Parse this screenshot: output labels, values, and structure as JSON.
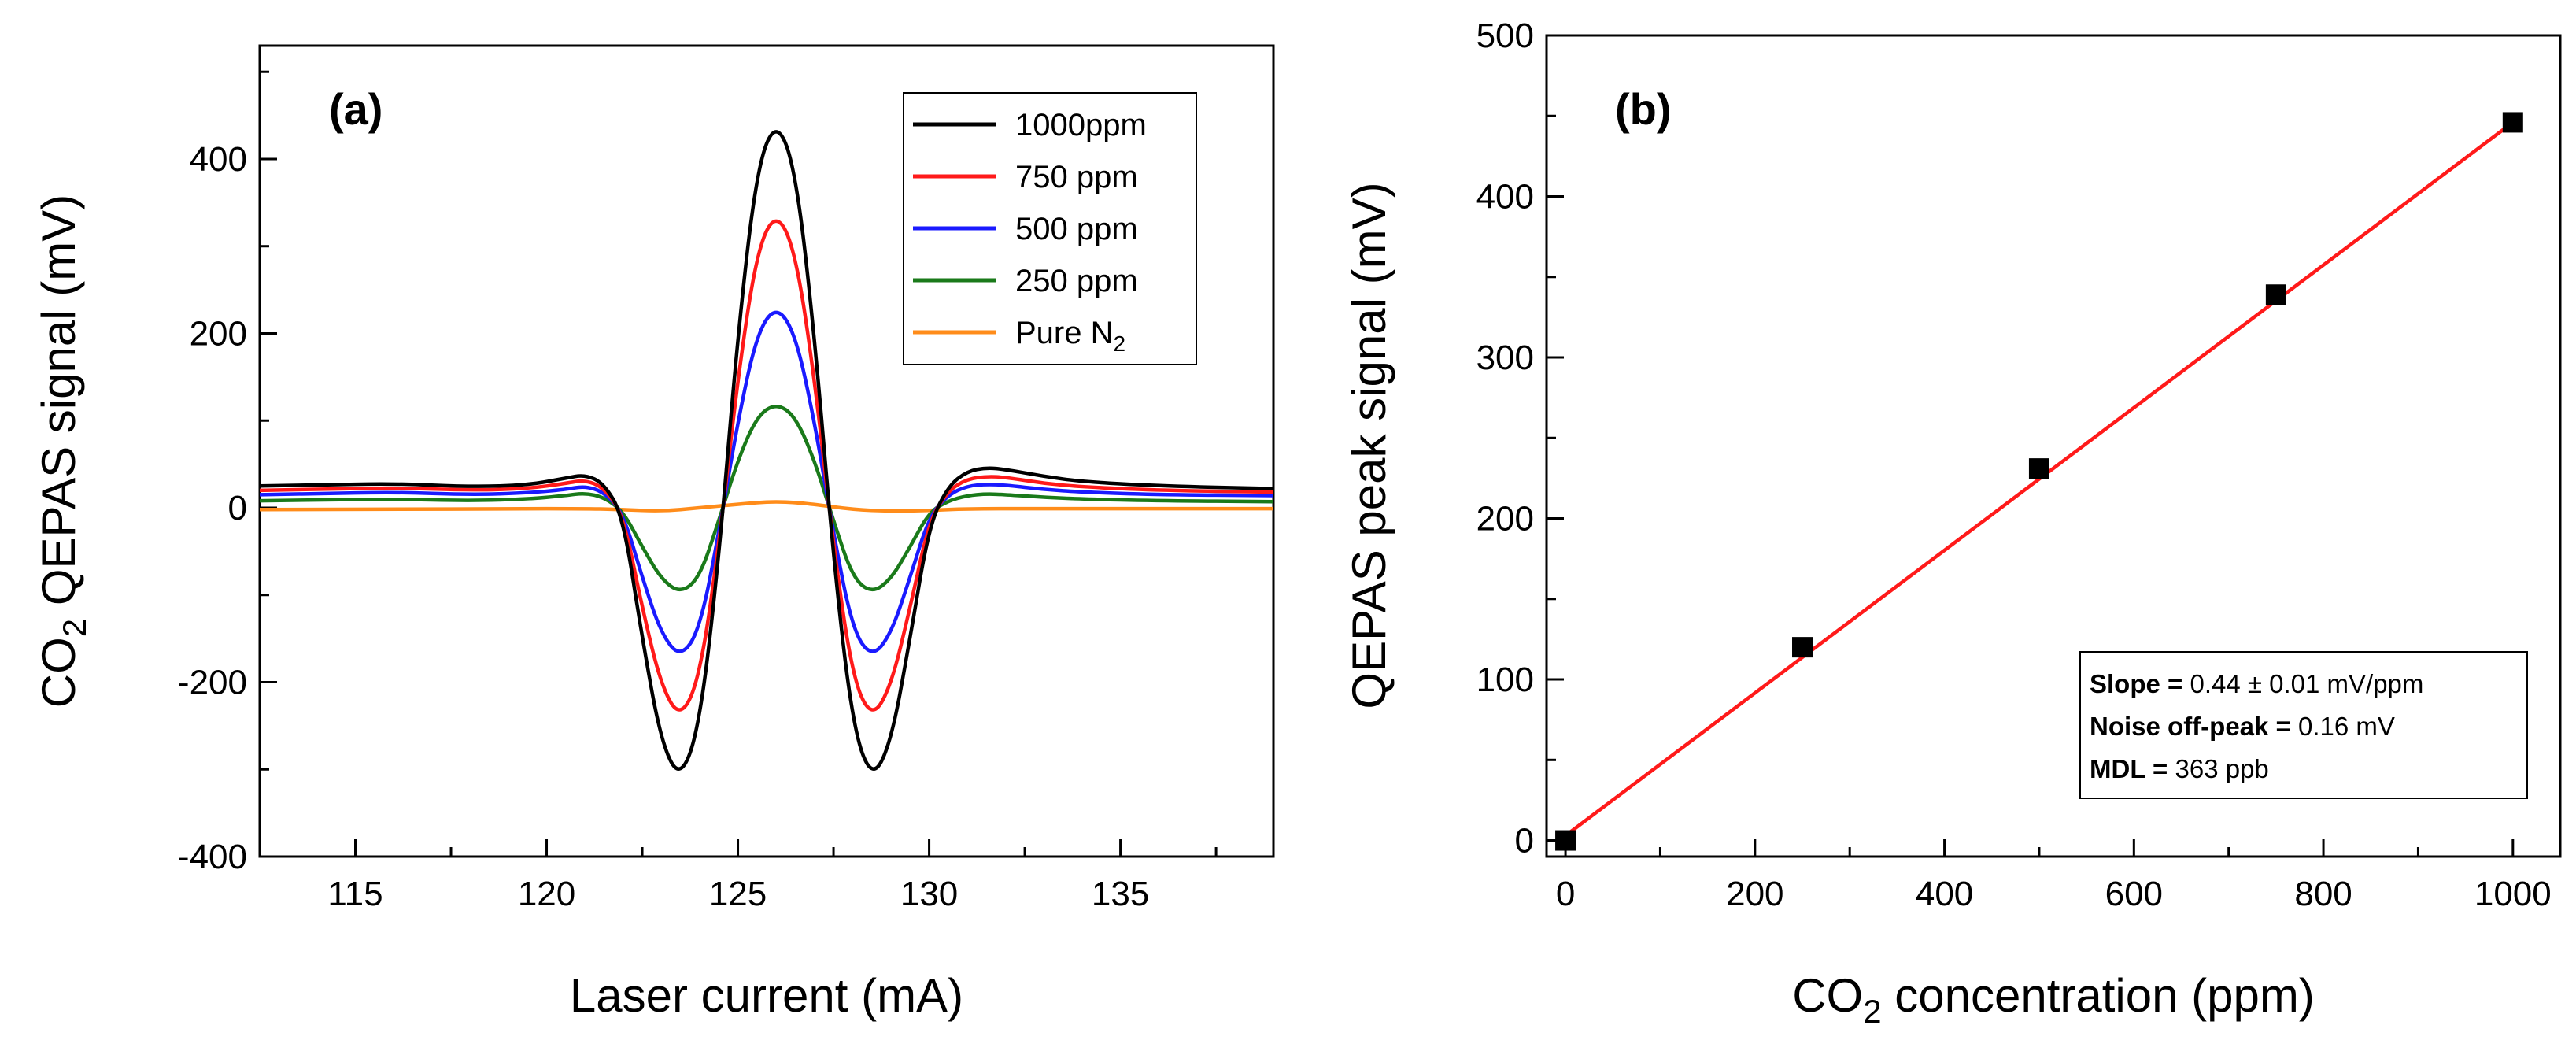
{
  "chart_data": [
    {
      "type": "line",
      "panel_label": "(a)",
      "ylabel": "CO",
      "ylabel_sub": "2",
      "ylabel_rest": " QEPAS signal (mV)",
      "xlabel": "Laser current (mA)",
      "xlim": [
        112.5,
        139
      ],
      "ylim": [
        -400,
        530
      ],
      "xticks": [
        115,
        120,
        125,
        130,
        135
      ],
      "yticks": [
        -400,
        -200,
        0,
        200,
        400
      ],
      "legend_position": "top-right",
      "series": [
        {
          "name": "1000ppm",
          "name_sub": "",
          "color": "#000000",
          "x": [
            112.5,
            114,
            116,
            118,
            119.5,
            120.5,
            121,
            121.5,
            122,
            122.5,
            123,
            123.5,
            124,
            124.5,
            125,
            125.5,
            126,
            126.5,
            127,
            127.5,
            128,
            128.5,
            129,
            129.5,
            130,
            130.5,
            131,
            131.5,
            132,
            133,
            134,
            136,
            139
          ],
          "y": [
            25,
            26,
            28,
            24,
            26,
            34,
            38,
            28,
            -10,
            -150,
            -270,
            -312,
            -250,
            -60,
            200,
            390,
            445,
            390,
            200,
            -60,
            -250,
            -312,
            -270,
            -150,
            -20,
            25,
            42,
            46,
            44,
            36,
            30,
            25,
            22
          ]
        },
        {
          "name": "750 ppm",
          "name_sub": "",
          "color": "#ff1a1a",
          "x": [
            112.5,
            114,
            116,
            118,
            119.5,
            120.5,
            121,
            121.5,
            122,
            122.5,
            123,
            123.5,
            124,
            124.5,
            125,
            125.5,
            126,
            126.5,
            127,
            127.5,
            128,
            128.5,
            129,
            129.5,
            130,
            130.5,
            131,
            131.5,
            132,
            133,
            134,
            136,
            139
          ],
          "y": [
            20,
            21,
            23,
            20,
            22,
            28,
            32,
            23,
            -8,
            -115,
            -205,
            -242,
            -195,
            -45,
            150,
            295,
            340,
            295,
            150,
            -45,
            -195,
            -242,
            -205,
            -115,
            -15,
            20,
            33,
            36,
            35,
            28,
            24,
            20,
            18
          ]
        },
        {
          "name": "500 ppm",
          "name_sub": "",
          "color": "#1a1aff",
          "x": [
            112.5,
            114,
            116,
            118,
            119.5,
            120.5,
            121,
            121.5,
            122,
            122.5,
            123,
            123.5,
            124,
            124.5,
            125,
            125.5,
            126,
            126.5,
            127,
            127.5,
            128,
            128.5,
            129,
            129.5,
            130,
            130.5,
            131,
            131.5,
            132,
            133,
            134,
            136,
            139
          ],
          "y": [
            15,
            16,
            18,
            15,
            17,
            21,
            25,
            18,
            -6,
            -80,
            -145,
            -172,
            -140,
            -30,
            100,
            200,
            232,
            200,
            100,
            -30,
            -140,
            -172,
            -145,
            -80,
            -10,
            15,
            25,
            27,
            26,
            21,
            18,
            15,
            14
          ]
        },
        {
          "name": "250 ppm",
          "name_sub": "",
          "color": "#1a7a1a",
          "x": [
            112.5,
            114,
            116,
            118,
            119.5,
            120.5,
            121,
            121.5,
            122,
            122.5,
            123,
            123.5,
            124,
            124.5,
            125,
            125.5,
            126,
            126.5,
            127,
            127.5,
            128,
            128.5,
            129,
            129.5,
            130,
            130.5,
            131,
            131.5,
            132,
            133,
            134,
            136,
            139
          ],
          "y": [
            8,
            9,
            10,
            8,
            10,
            14,
            17,
            12,
            -4,
            -45,
            -82,
            -98,
            -80,
            -15,
            55,
            105,
            120,
            105,
            55,
            -15,
            -80,
            -98,
            -82,
            -45,
            -5,
            8,
            14,
            16,
            15,
            12,
            10,
            8,
            7
          ]
        },
        {
          "name": "Pure N",
          "name_sub": "2",
          "color": "#ff8c1a",
          "x": [
            112.5,
            116,
            119,
            121,
            122,
            123,
            124,
            125,
            125.5,
            126,
            126.5,
            127,
            128,
            129,
            130,
            131,
            133,
            136,
            139
          ],
          "y": [
            -2,
            -2,
            -1,
            -1,
            -2,
            -4,
            0,
            4,
            6,
            7,
            6,
            4,
            -2,
            -4,
            -3,
            -1,
            -1,
            -1,
            -1
          ]
        }
      ]
    },
    {
      "type": "scatter",
      "panel_label": "(b)",
      "ylabel": "QEPAS peak signal (mV)",
      "xlabel": "CO",
      "xlabel_sub": "2",
      "xlabel_rest": " concentration (ppm)",
      "xlim": [
        -20,
        1050
      ],
      "ylim": [
        -10,
        500
      ],
      "xticks": [
        0,
        200,
        400,
        600,
        800,
        1000
      ],
      "yticks": [
        0,
        100,
        200,
        300,
        400,
        500
      ],
      "points": {
        "x": [
          0,
          250,
          500,
          750,
          1000
        ],
        "y": [
          0,
          120,
          231,
          339,
          446
        ],
        "color": "#000000"
      },
      "fit_line": {
        "x": [
          0,
          1000
        ],
        "y": [
          3,
          446
        ],
        "color": "#ff1a1a"
      },
      "annotation": [
        {
          "bold": "Slope = ",
          "text": "0.44 ± 0.01 mV/ppm"
        },
        {
          "bold": "Noise off-peak = ",
          "text": "0.16 mV"
        },
        {
          "bold": "MDL = ",
          "text": "363 ppb"
        }
      ]
    }
  ]
}
